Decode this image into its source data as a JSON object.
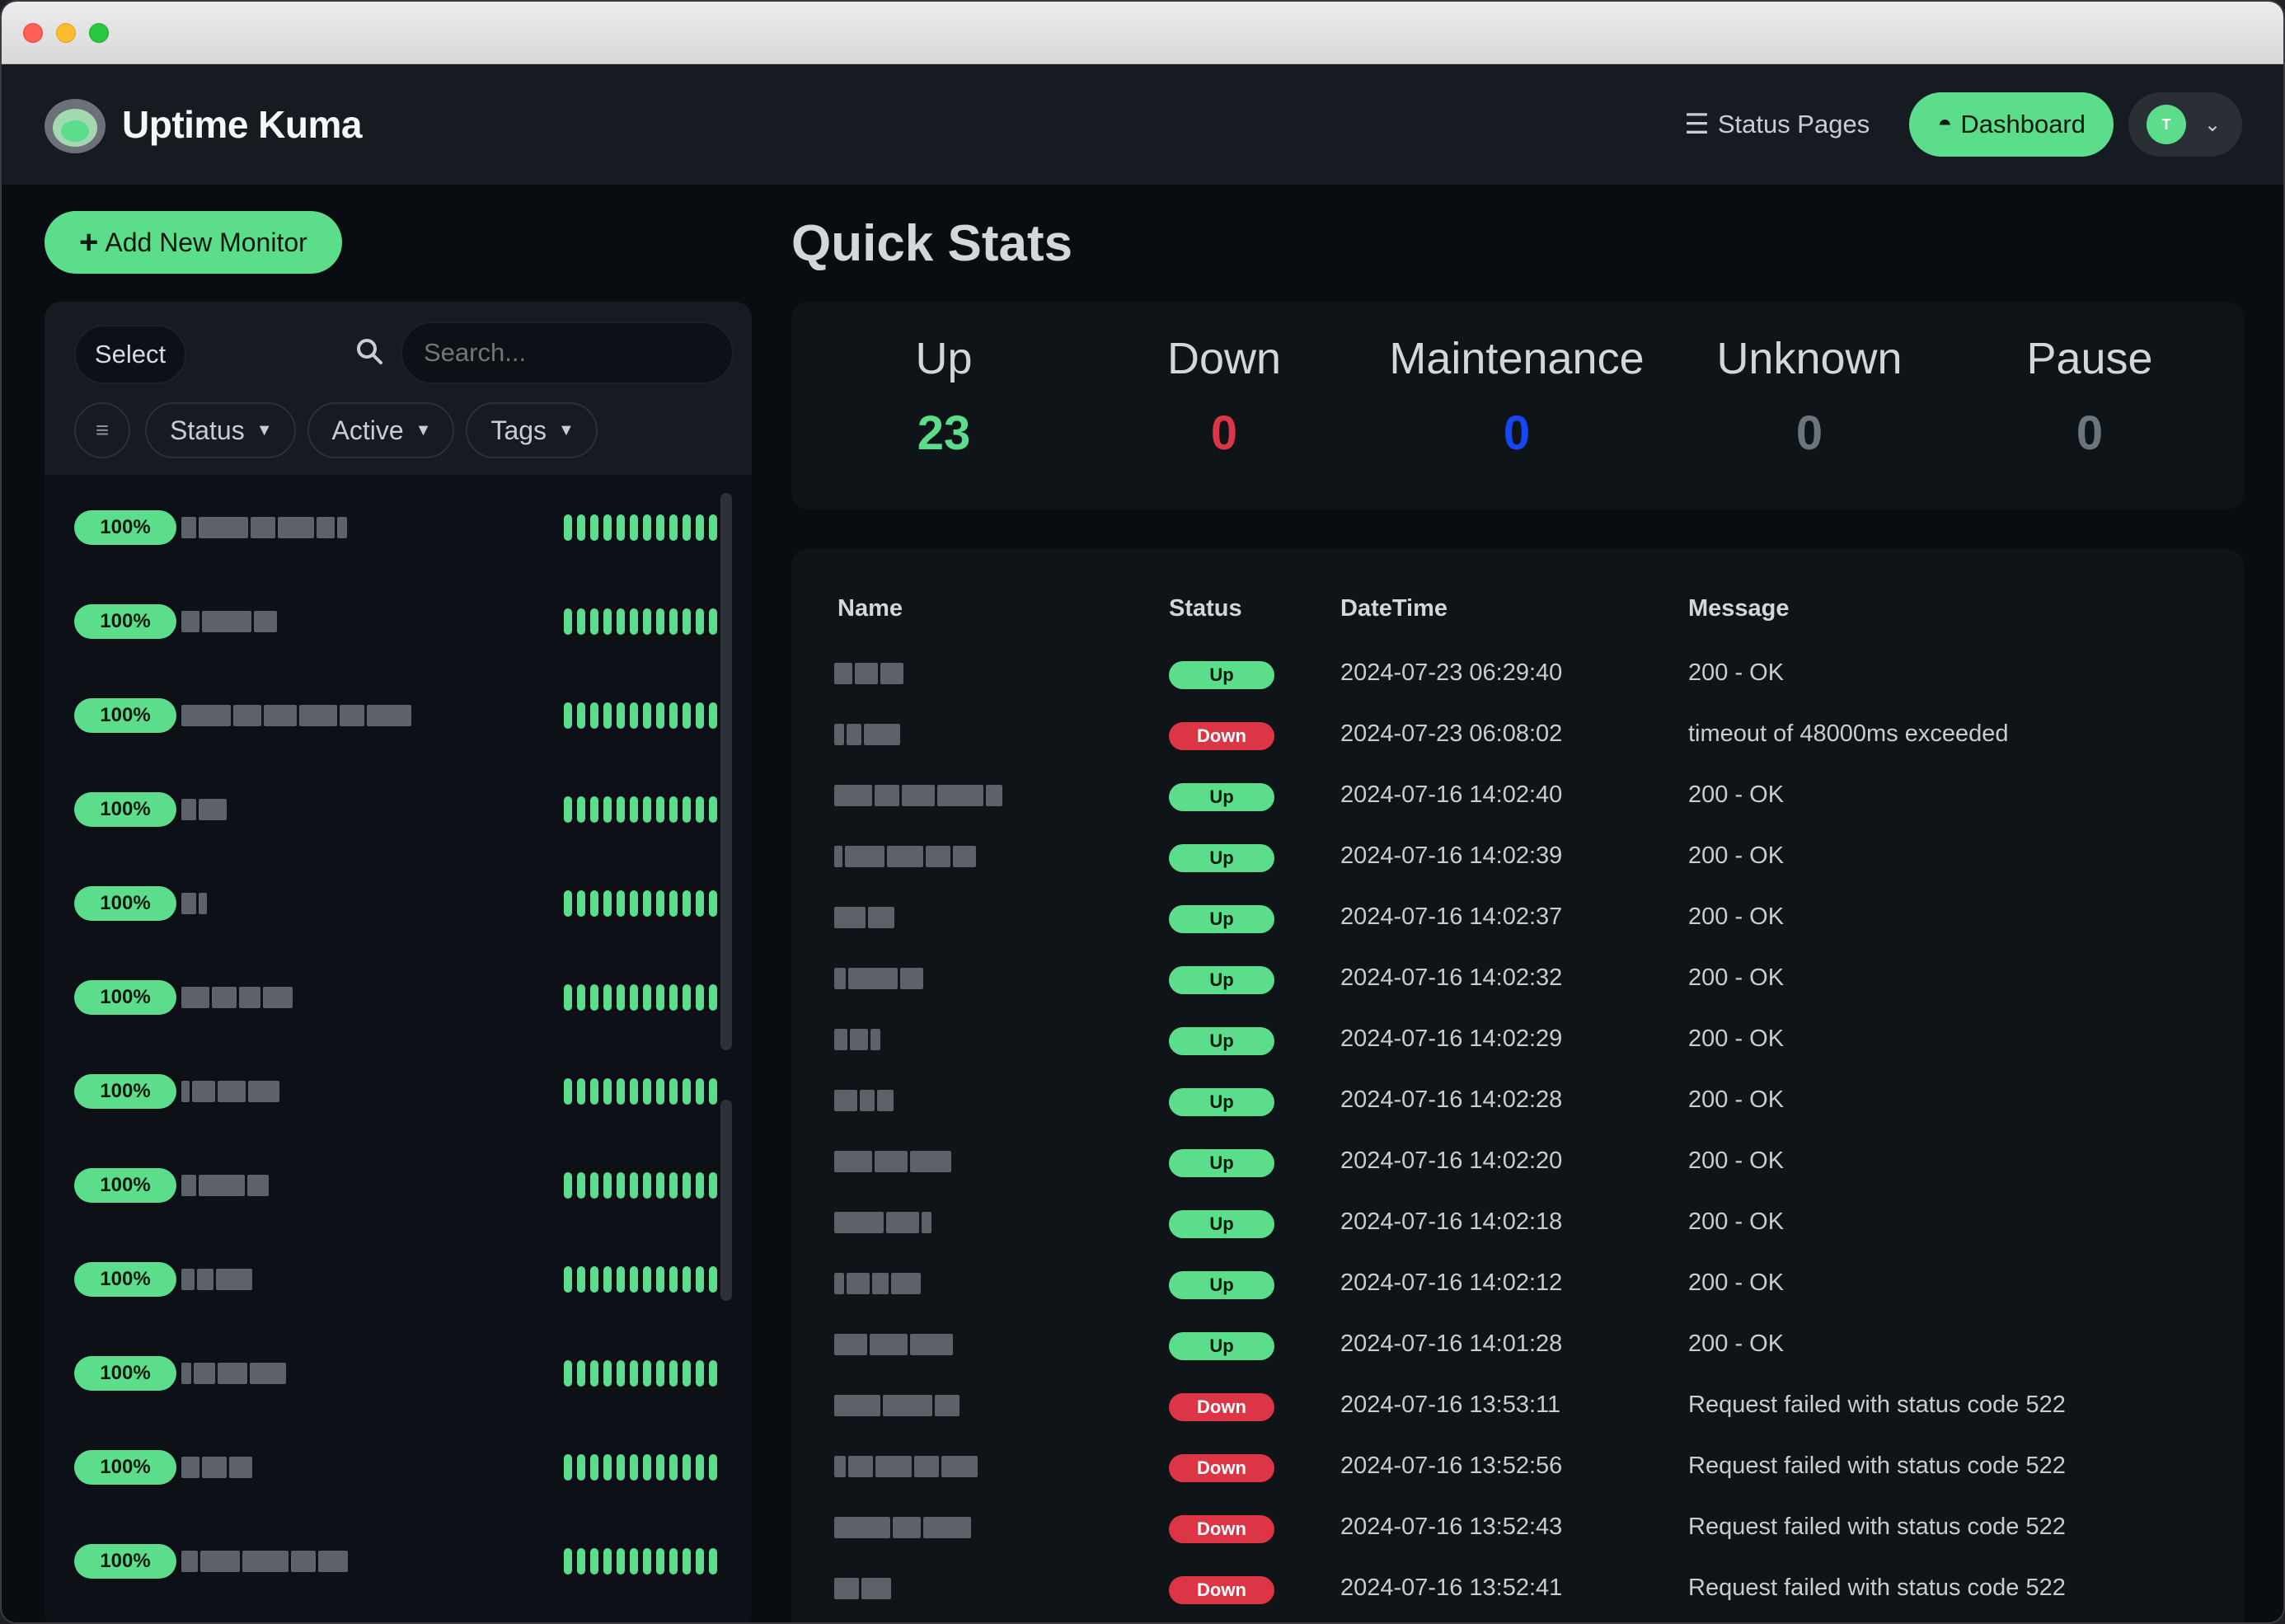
{
  "app": {
    "name": "Uptime Kuma"
  },
  "header": {
    "status_pages_label": "Status Pages",
    "dashboard_label": "Dashboard",
    "avatar_initial": "T"
  },
  "sidebar": {
    "add_button_label": "Add New Monitor",
    "select_label": "Select",
    "search_placeholder": "Search...",
    "filters": [
      "Status",
      "Active",
      "Tags"
    ],
    "monitors": [
      {
        "uptime": "100%"
      },
      {
        "uptime": "100%"
      },
      {
        "uptime": "100%"
      },
      {
        "uptime": "100%"
      },
      {
        "uptime": "100%"
      },
      {
        "uptime": "100%"
      },
      {
        "uptime": "100%"
      },
      {
        "uptime": "100%"
      },
      {
        "uptime": "100%"
      },
      {
        "uptime": "100%"
      },
      {
        "uptime": "100%"
      },
      {
        "uptime": "100%"
      }
    ]
  },
  "quick_stats": {
    "title": "Quick Stats",
    "items": [
      {
        "label": "Up",
        "value": "23",
        "color": "#5cdd8b"
      },
      {
        "label": "Down",
        "value": "0",
        "color": "#dc3545"
      },
      {
        "label": "Maintenance",
        "value": "0",
        "color": "#1747f5"
      },
      {
        "label": "Unknown",
        "value": "0",
        "color": "#6c757d"
      },
      {
        "label": "Pause",
        "value": "0",
        "color": "#6c757d"
      }
    ]
  },
  "events": {
    "columns": [
      "Name",
      "Status",
      "DateTime",
      "Message"
    ],
    "rows": [
      {
        "status": "Up",
        "datetime": "2024-07-23 06:29:40",
        "message": "200 - OK"
      },
      {
        "status": "Down",
        "datetime": "2024-07-23 06:08:02",
        "message": "timeout of 48000ms exceeded"
      },
      {
        "status": "Up",
        "datetime": "2024-07-16 14:02:40",
        "message": "200 - OK"
      },
      {
        "status": "Up",
        "datetime": "2024-07-16 14:02:39",
        "message": "200 - OK"
      },
      {
        "status": "Up",
        "datetime": "2024-07-16 14:02:37",
        "message": "200 - OK"
      },
      {
        "status": "Up",
        "datetime": "2024-07-16 14:02:32",
        "message": "200 - OK"
      },
      {
        "status": "Up",
        "datetime": "2024-07-16 14:02:29",
        "message": "200 - OK"
      },
      {
        "status": "Up",
        "datetime": "2024-07-16 14:02:28",
        "message": "200 - OK"
      },
      {
        "status": "Up",
        "datetime": "2024-07-16 14:02:20",
        "message": "200 - OK"
      },
      {
        "status": "Up",
        "datetime": "2024-07-16 14:02:18",
        "message": "200 - OK"
      },
      {
        "status": "Up",
        "datetime": "2024-07-16 14:02:12",
        "message": "200 - OK"
      },
      {
        "status": "Up",
        "datetime": "2024-07-16 14:01:28",
        "message": "200 - OK"
      },
      {
        "status": "Down",
        "datetime": "2024-07-16 13:53:11",
        "message": "Request failed with status code 522"
      },
      {
        "status": "Down",
        "datetime": "2024-07-16 13:52:56",
        "message": "Request failed with status code 522"
      },
      {
        "status": "Down",
        "datetime": "2024-07-16 13:52:43",
        "message": "Request failed with status code 522"
      },
      {
        "status": "Down",
        "datetime": "2024-07-16 13:52:41",
        "message": "Request failed with status code 522"
      }
    ]
  }
}
